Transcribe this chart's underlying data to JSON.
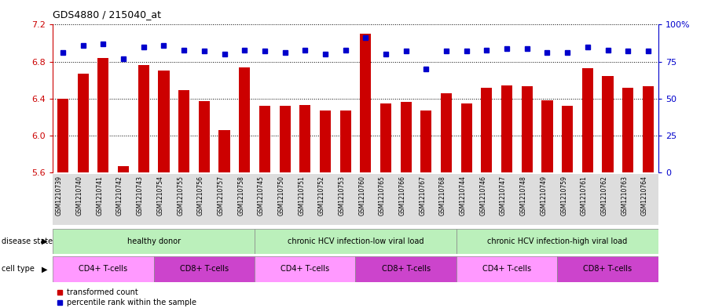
{
  "title": "GDS4880 / 215040_at",
  "samples": [
    "GSM1210739",
    "GSM1210740",
    "GSM1210741",
    "GSM1210742",
    "GSM1210743",
    "GSM1210754",
    "GSM1210755",
    "GSM1210756",
    "GSM1210757",
    "GSM1210758",
    "GSM1210745",
    "GSM1210750",
    "GSM1210751",
    "GSM1210752",
    "GSM1210753",
    "GSM1210760",
    "GSM1210765",
    "GSM1210766",
    "GSM1210767",
    "GSM1210768",
    "GSM1210744",
    "GSM1210746",
    "GSM1210747",
    "GSM1210748",
    "GSM1210749",
    "GSM1210759",
    "GSM1210761",
    "GSM1210762",
    "GSM1210763",
    "GSM1210764"
  ],
  "bar_values": [
    6.4,
    6.67,
    6.84,
    5.67,
    6.76,
    6.7,
    6.49,
    6.37,
    6.06,
    6.74,
    6.32,
    6.32,
    6.33,
    6.27,
    6.27,
    7.1,
    6.35,
    6.36,
    6.27,
    6.46,
    6.35,
    6.52,
    6.54,
    6.53,
    6.38,
    6.32,
    6.73,
    6.64,
    6.52,
    6.53
  ],
  "percentile_values": [
    81,
    86,
    87,
    77,
    85,
    86,
    83,
    82,
    80,
    83,
    82,
    81,
    83,
    80,
    83,
    91,
    80,
    82,
    70,
    82,
    82,
    83,
    84,
    84,
    81,
    81,
    85,
    83,
    82,
    82
  ],
  "bar_color": "#cc0000",
  "percentile_color": "#0000cc",
  "ylim_left": [
    5.6,
    7.2
  ],
  "ylim_right": [
    0,
    100
  ],
  "yticks_left": [
    5.6,
    6.0,
    6.4,
    6.8,
    7.2
  ],
  "yticks_right": [
    0,
    25,
    50,
    75,
    100
  ],
  "ytick_labels_right": [
    "0",
    "25",
    "50",
    "75",
    "100%"
  ],
  "disease_state_groups": [
    {
      "label": "healthy donor",
      "start": 0,
      "end": 9
    },
    {
      "label": "chronic HCV infection-low viral load",
      "start": 10,
      "end": 19
    },
    {
      "label": "chronic HCV infection-high viral load",
      "start": 20,
      "end": 29
    }
  ],
  "cell_type_groups": [
    {
      "label": "CD4+ T-cells",
      "start": 0,
      "end": 4,
      "color": "#ff99ff"
    },
    {
      "label": "CD8+ T-cells",
      "start": 5,
      "end": 9,
      "color": "#cc44cc"
    },
    {
      "label": "CD4+ T-cells",
      "start": 10,
      "end": 14,
      "color": "#ff99ff"
    },
    {
      "label": "CD8+ T-cells",
      "start": 15,
      "end": 19,
      "color": "#cc44cc"
    },
    {
      "label": "CD4+ T-cells",
      "start": 20,
      "end": 24,
      "color": "#ff99ff"
    },
    {
      "label": "CD8+ T-cells",
      "start": 25,
      "end": 29,
      "color": "#cc44cc"
    }
  ],
  "disease_state_label": "disease state",
  "cell_type_label": "cell type",
  "ds_color": "#bbf0bb",
  "background_color": "#ffffff",
  "left_axis_color": "#cc0000",
  "right_axis_color": "#0000cc",
  "xtick_bg_color": "#dddddd"
}
